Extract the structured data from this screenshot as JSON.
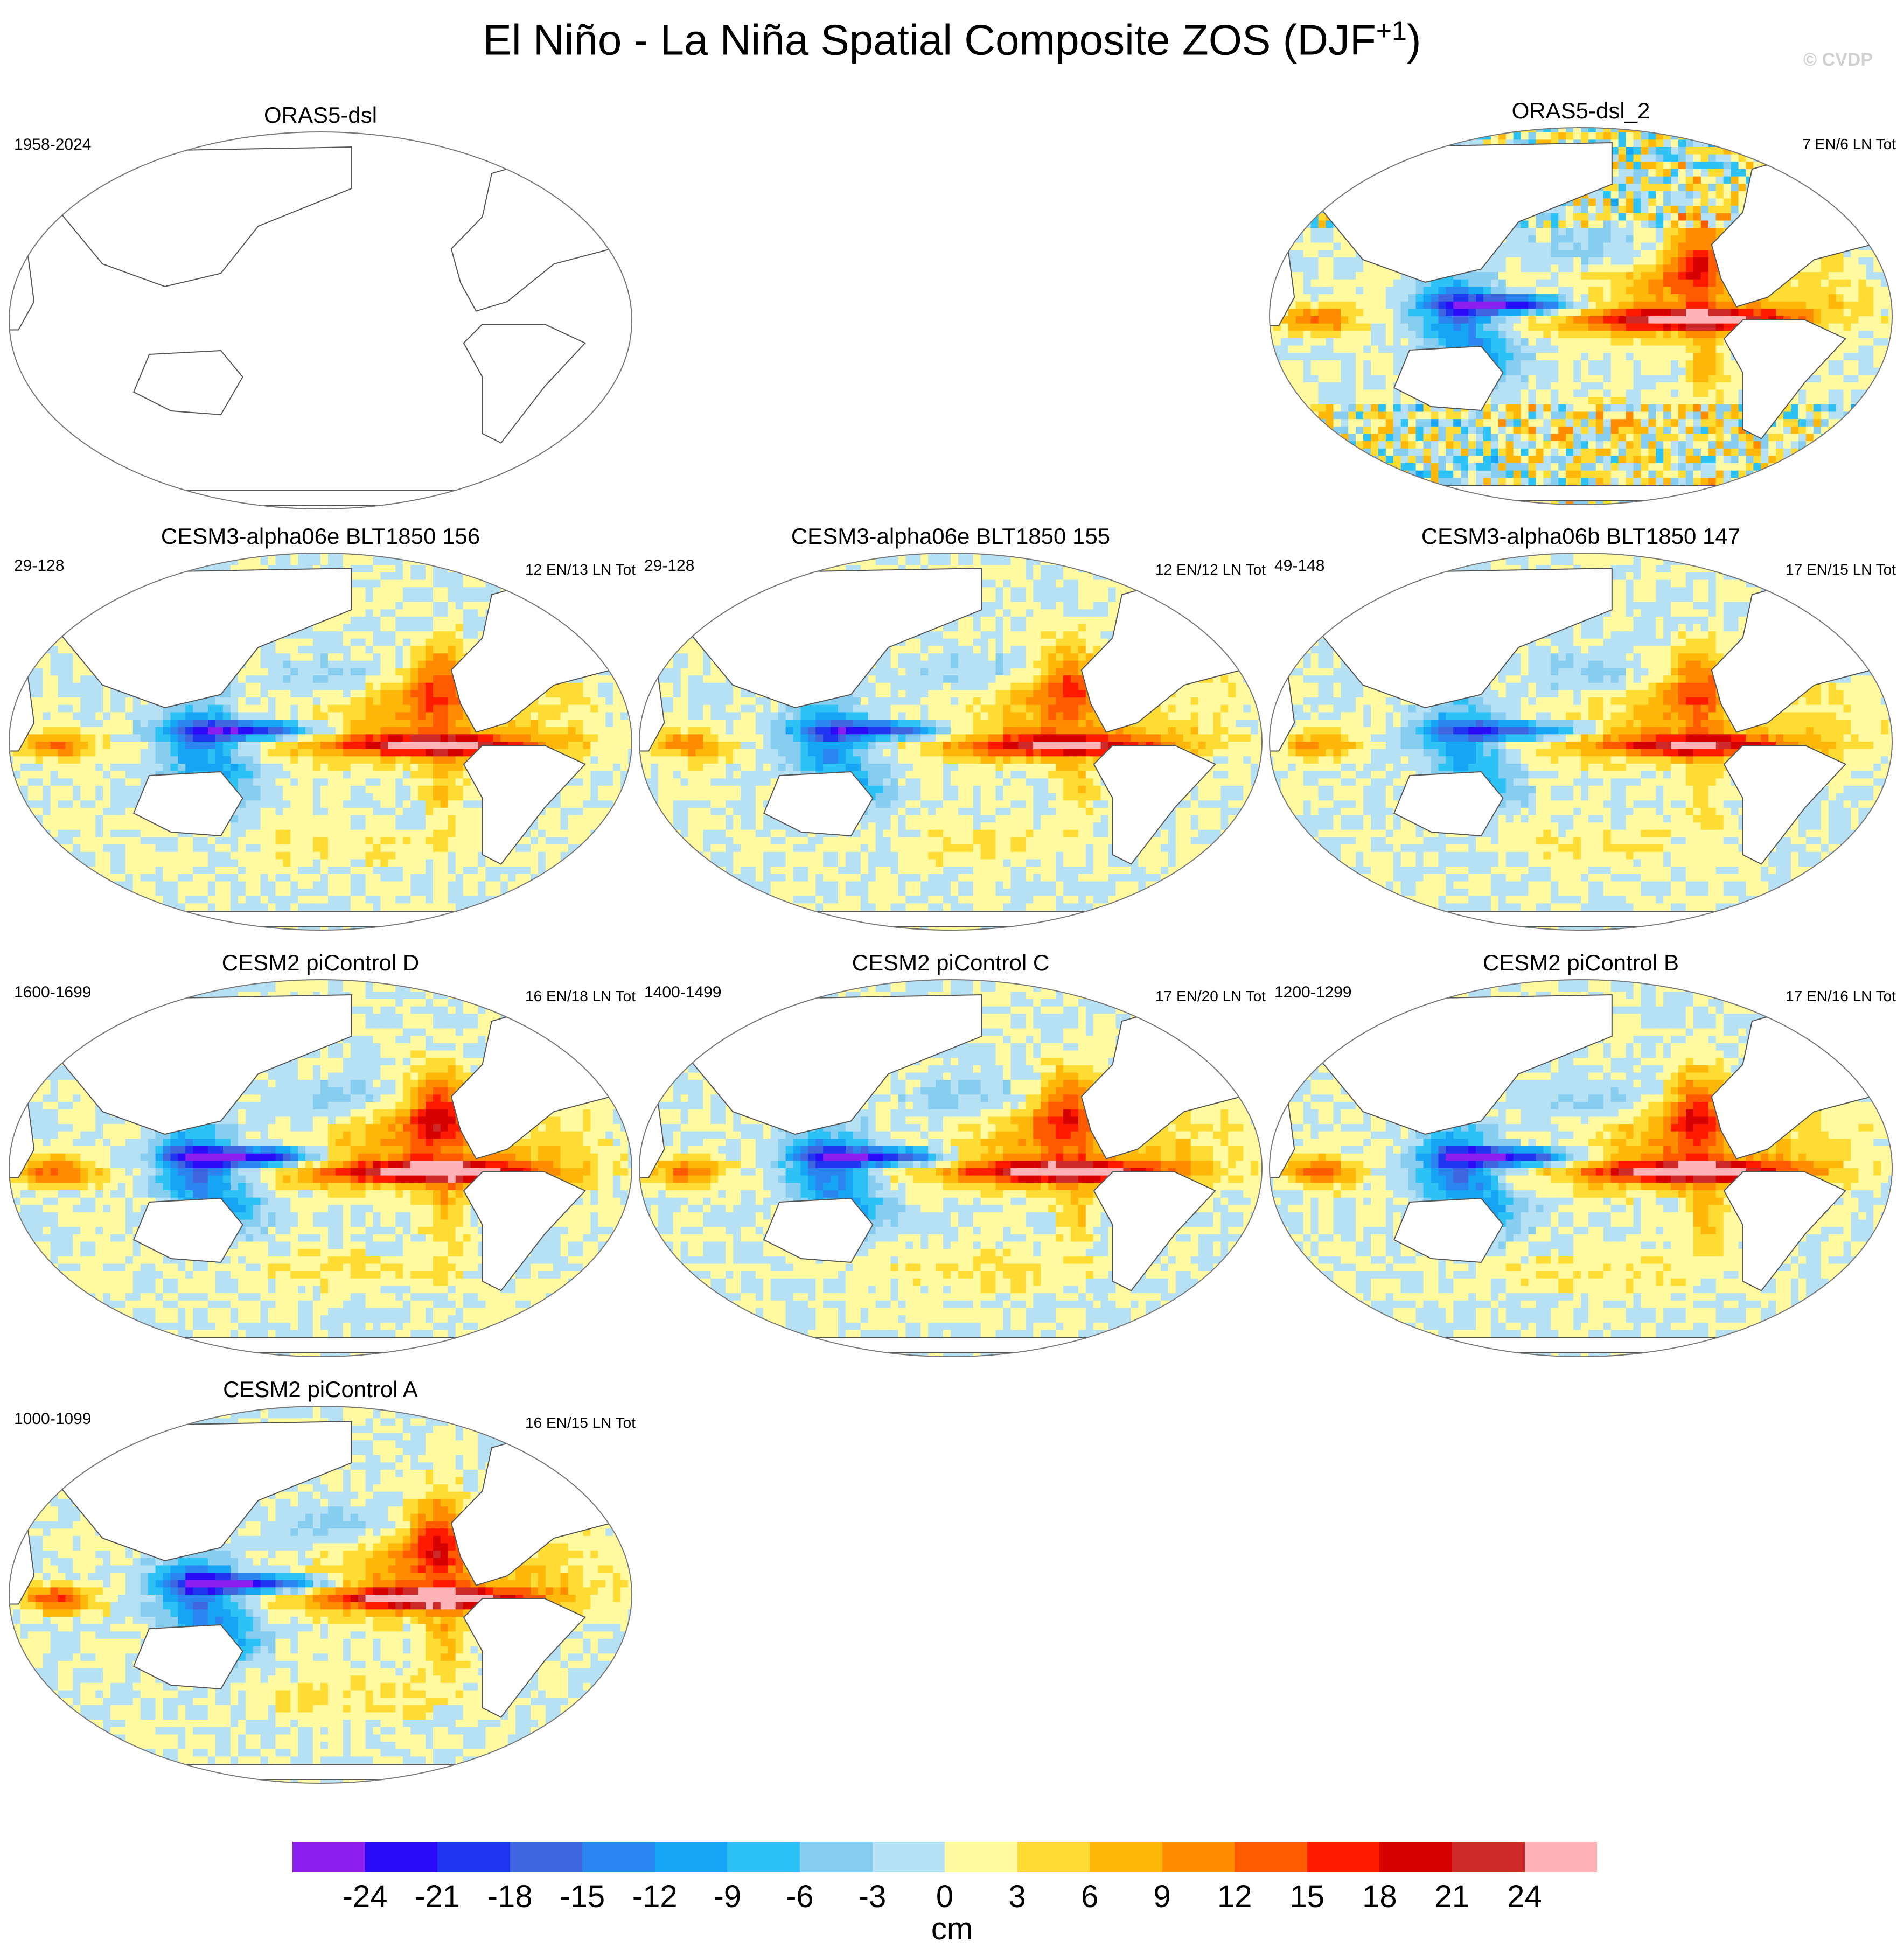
{
  "title": {
    "main": "El Niño - La Niña Spatial Composite ZOS (DJF",
    "superscript": "+1",
    "close": ")"
  },
  "watermark": "© CVDP",
  "colors": {
    "land": "#ffffff",
    "coast": "#555555",
    "frame": "#777777",
    "scale": [
      "#8a1ff0",
      "#2b0bf7",
      "#1f35ef",
      "#3f66e0",
      "#2a85f0",
      "#16a5f5",
      "#2cc2f6",
      "#86cdef",
      "#b6e0f4",
      "#fff9a0",
      "#ffdc34",
      "#ffb70a",
      "#ff8b00",
      "#ff5a00",
      "#ff1a00",
      "#d60000",
      "#cf2a2a",
      "#ffb3b8"
    ]
  },
  "colorbar": {
    "labels": [
      "-24",
      "-21",
      "-18",
      "-15",
      "-12",
      "-9",
      "-6",
      "-3",
      "0",
      "3",
      "6",
      "9",
      "12",
      "15",
      "18",
      "21",
      "24"
    ],
    "unit": "cm"
  },
  "panels": [
    {
      "id": "p1",
      "title": "ORAS5-dsl",
      "years": "1958-2024",
      "counts": "",
      "blank": true,
      "intensity": 0
    },
    {
      "id": "p2",
      "title": "ORAS5-dsl_2",
      "years": "",
      "counts": "7 EN/6 LN Tot",
      "blank": false,
      "intensity": 1.05,
      "noisy": true
    },
    {
      "id": "p3",
      "title": "CESM3-alpha06e BLT1850 156",
      "years": "29-128",
      "counts": "12 EN/13 LN Tot",
      "blank": false,
      "intensity": 0.95
    },
    {
      "id": "p4",
      "title": "CESM3-alpha06e BLT1850 155",
      "years": "29-128",
      "counts": "12 EN/12 LN Tot",
      "blank": false,
      "intensity": 0.9
    },
    {
      "id": "p5",
      "title": "CESM3-alpha06b BLT1850 147",
      "years": "49-148",
      "counts": "17 EN/15 LN Tot",
      "blank": false,
      "intensity": 0.85
    },
    {
      "id": "p6",
      "title": "CESM2 piControl D",
      "years": "1600-1699",
      "counts": "16 EN/18 LN Tot",
      "blank": false,
      "intensity": 1.15
    },
    {
      "id": "p7",
      "title": "CESM2 piControl C",
      "years": "1400-1499",
      "counts": "17 EN/20 LN Tot",
      "blank": false,
      "intensity": 1.05
    },
    {
      "id": "p8",
      "title": "CESM2 piControl B",
      "years": "1200-1299",
      "counts": "17 EN/16 LN Tot",
      "blank": false,
      "intensity": 1.1
    },
    {
      "id": "p9",
      "title": "CESM2 piControl A",
      "years": "1000-1099",
      "counts": "16 EN/15 LN Tot",
      "blank": false,
      "intensity": 1.15
    }
  ]
}
